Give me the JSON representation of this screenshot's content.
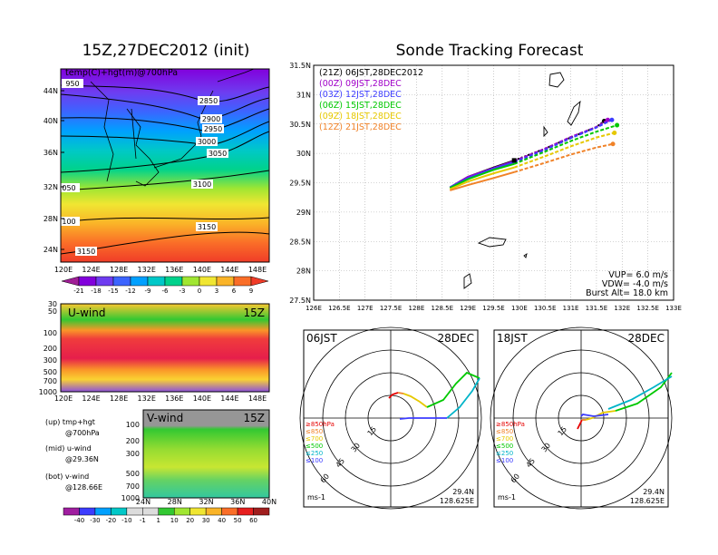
{
  "left": {
    "title": "15Z,27DEC2012 (init)",
    "map_label": "temp(C)+hgt(m)@700hPa",
    "map_lat_ticks": [
      "44N",
      "40N",
      "36N",
      "32N",
      "28N",
      "24N"
    ],
    "map_lon_ticks": [
      "120E",
      "124E",
      "128E",
      "132E",
      "136E",
      "140E",
      "144E",
      "148E"
    ],
    "contours": [
      "950",
      "2850",
      "2900",
      "2950",
      "3000",
      "3050",
      "050",
      "3100",
      "100",
      "3150",
      "3150"
    ],
    "temp_colorbar": [
      "-21",
      "-18",
      "-15",
      "-12",
      "-9",
      "-6",
      "-3",
      "0",
      "3",
      "6",
      "9"
    ],
    "u_label": "U-wind",
    "u_time": "15Z",
    "u_pres_ticks": [
      "30",
      "50",
      "100",
      "200",
      "300",
      "500",
      "700",
      "1000"
    ],
    "u_lon_ticks": [
      "120E",
      "124E",
      "128E",
      "132E",
      "136E",
      "140E",
      "144E",
      "148E"
    ],
    "v_label": "V-wind",
    "v_time": "15Z",
    "v_pres_ticks": [
      "100",
      "200",
      "300",
      "500",
      "700",
      "1000"
    ],
    "v_lat_ticks": [
      "24N",
      "28N",
      "32N",
      "36N",
      "40N"
    ],
    "wind_colorbar": [
      "-40",
      "-30",
      "-20",
      "-10",
      "-1",
      "1",
      "10",
      "20",
      "30",
      "40",
      "50",
      "60"
    ],
    "notes": [
      "(up) tmp+hgt",
      "@700hPa",
      "(mid) u-wind",
      "@29.36N",
      "(bot) v-wind",
      "@128.66E"
    ]
  },
  "tracking": {
    "title": "Sonde Tracking Forecast",
    "legend": [
      {
        "label": "(21Z) 06JST,28DEC2012",
        "color": "#000000"
      },
      {
        "label": "(00Z) 09JST,28DEC",
        "color": "#a000c8"
      },
      {
        "label": "(03Z) 12JST,28DEC",
        "color": "#3c3cff"
      },
      {
        "label": "(06Z) 15JST,28DEC",
        "color": "#00c800"
      },
      {
        "label": "(09Z) 18JST,28DEC",
        "color": "#e6c800"
      },
      {
        "label": "(12Z) 21JST,28DEC",
        "color": "#f08228"
      }
    ],
    "lat_ticks": [
      "31.5N",
      "31N",
      "30.5N",
      "30N",
      "29.5N",
      "29N",
      "28.5N",
      "28N",
      "27.5N"
    ],
    "lon_ticks": [
      "126E",
      "126.5E",
      "127E",
      "127.5E",
      "128E",
      "128.5E",
      "129E",
      "129.5E",
      "130E",
      "130.5E",
      "131E",
      "131.5E",
      "132E",
      "132.5E",
      "133E"
    ],
    "params": [
      "VUP= 6.0 m/s",
      "VDW= -4.0 m/s",
      "Burst Alt= 18.0 km"
    ]
  },
  "chart_data": [
    {
      "type": "line",
      "title": "Sonde Tracking Forecast",
      "xlim": [
        126,
        133
      ],
      "ylim": [
        27.5,
        31.5
      ],
      "series": [
        {
          "name": "(21Z) 06JST,28DEC2012",
          "x": [
            128.65,
            129.0,
            129.5,
            129.9,
            130.5,
            131.0,
            131.5,
            131.65
          ],
          "y": [
            29.42,
            29.6,
            29.76,
            29.88,
            30.08,
            30.27,
            30.45,
            30.55
          ]
        },
        {
          "name": "(00Z) 09JST,28DEC",
          "x": [
            128.65,
            129.0,
            129.5,
            129.9,
            130.5,
            131.0,
            131.5,
            131.72
          ],
          "y": [
            29.42,
            29.6,
            29.75,
            29.87,
            30.08,
            30.28,
            30.45,
            30.57
          ]
        },
        {
          "name": "(03Z) 12JST,28DEC",
          "x": [
            128.65,
            129.0,
            129.5,
            129.9,
            130.5,
            131.0,
            131.5,
            131.8
          ],
          "y": [
            29.42,
            29.58,
            29.74,
            29.85,
            30.06,
            30.26,
            30.44,
            30.57
          ]
        },
        {
          "name": "(06Z) 15JST,28DEC",
          "x": [
            128.65,
            129.0,
            129.5,
            129.9,
            130.5,
            131.0,
            131.5,
            131.9
          ],
          "y": [
            29.41,
            29.56,
            29.72,
            29.82,
            30.03,
            30.21,
            30.37,
            30.48
          ]
        },
        {
          "name": "(09Z) 18JST,28DEC",
          "x": [
            128.65,
            129.0,
            129.5,
            129.9,
            130.5,
            131.0,
            131.5,
            131.85
          ],
          "y": [
            29.39,
            29.52,
            29.66,
            29.76,
            29.95,
            30.12,
            30.27,
            30.35
          ]
        },
        {
          "name": "(12Z) 21JST,28DEC",
          "x": [
            128.65,
            129.0,
            129.5,
            129.9,
            130.5,
            131.0,
            131.5,
            131.82
          ],
          "y": [
            29.37,
            29.46,
            29.58,
            29.68,
            29.84,
            29.98,
            30.1,
            30.16
          ]
        }
      ]
    },
    {
      "type": "scatter",
      "title": "15Z,27DEC2012 (init)",
      "xlabel": "",
      "ylabel": "",
      "xlim": [
        120,
        149
      ],
      "ylim": [
        22,
        47
      ],
      "series": [
        {
          "name": "",
          "x": [],
          "y": []
        }
      ]
    }
  ],
  "hodographs": [
    {
      "time": "06JST",
      "date": "28DEC",
      "lat": "29.4N",
      "lon": "128.625E",
      "unit": "ms-1",
      "rings": [
        "15",
        "30",
        "45",
        "60"
      ],
      "levels": [
        {
          "label": "≥850hPa",
          "color": "#e60000"
        },
        {
          "label": "≤850",
          "color": "#f08228"
        },
        {
          "label": "≤700",
          "color": "#e6c800"
        },
        {
          "label": "≤500",
          "color": "#00c800"
        },
        {
          "label": "≤250",
          "color": "#00b4c8"
        },
        {
          "label": "≤100",
          "color": "#3c3cff"
        }
      ]
    },
    {
      "time": "18JST",
      "date": "28DEC",
      "lat": "29.4N",
      "lon": "128.625E",
      "unit": "ms-1",
      "rings": [
        "15",
        "30",
        "45",
        "60"
      ],
      "levels": [
        {
          "label": "≥850hPa",
          "color": "#e60000"
        },
        {
          "label": "≤850",
          "color": "#f08228"
        },
        {
          "label": "≤700",
          "color": "#e6c800"
        },
        {
          "label": "≤500",
          "color": "#00c800"
        },
        {
          "label": "≤250",
          "color": "#00b4c8"
        },
        {
          "label": "≤100",
          "color": "#3c3cff"
        }
      ]
    }
  ]
}
